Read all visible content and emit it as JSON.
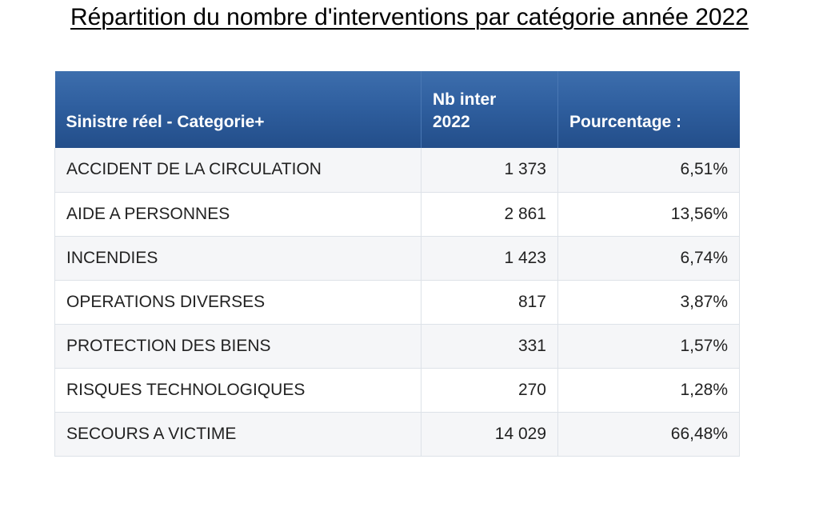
{
  "title": "Répartition du nombre d'interventions par catégorie année 2022",
  "table": {
    "headers": {
      "category": "Sinistre réel - Categorie+",
      "count_line1": "Nb inter",
      "count_line2": "2022",
      "percent": "Pourcentage :"
    },
    "rows": [
      {
        "category": "ACCIDENT DE LA CIRCULATION",
        "count": "1 373",
        "percent": "6,51%"
      },
      {
        "category": "AIDE A PERSONNES",
        "count": "2 861",
        "percent": "13,56%"
      },
      {
        "category": "INCENDIES",
        "count": "1 423",
        "percent": "6,74%"
      },
      {
        "category": "OPERATIONS DIVERSES",
        "count": "817",
        "percent": "3,87%"
      },
      {
        "category": "PROTECTION DES BIENS",
        "count": "331",
        "percent": "1,57%"
      },
      {
        "category": "RISQUES TECHNOLOGIQUES",
        "count": "270",
        "percent": "1,28%"
      },
      {
        "category": "SECOURS A VICTIME",
        "count": "14 029",
        "percent": "66,48%"
      }
    ]
  },
  "colors": {
    "header_background": "#2f5f9f",
    "header_text": "#ffffff",
    "row_alt_background": "#f5f6f8",
    "border": "#dde2e8"
  }
}
